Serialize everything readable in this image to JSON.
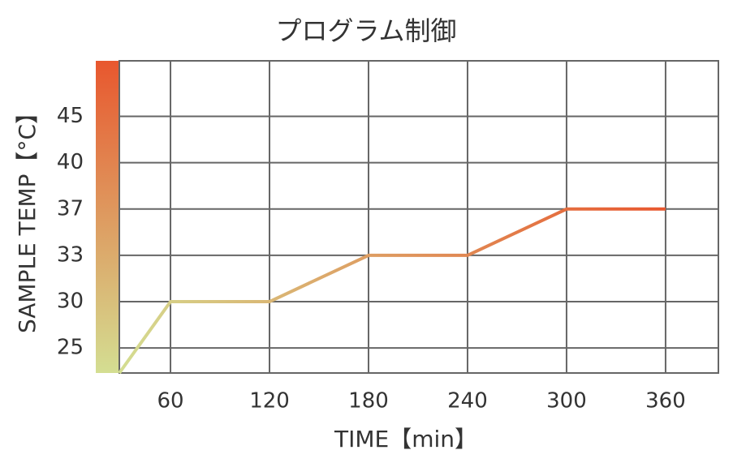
{
  "chart_data": {
    "type": "line",
    "title": "プログラム制御",
    "x_label": "TIME【min】",
    "y_label": "SAMPLE TEMP【°C】",
    "series": [
      {
        "x": [
          29,
          60,
          120,
          180,
          240,
          300,
          360
        ],
        "values": [
          22.3,
          30,
          30,
          33,
          33,
          37,
          37
        ]
      }
    ],
    "xlim": [
      29,
      392
    ],
    "xticks": [
      60,
      120,
      180,
      240,
      300,
      360
    ],
    "ylim": [
      22.3,
      51
    ],
    "yticks": [
      25,
      30,
      33,
      37,
      40,
      45
    ],
    "grid": true,
    "color_scale": [
      "#d4de92",
      "#e8572e"
    ]
  }
}
